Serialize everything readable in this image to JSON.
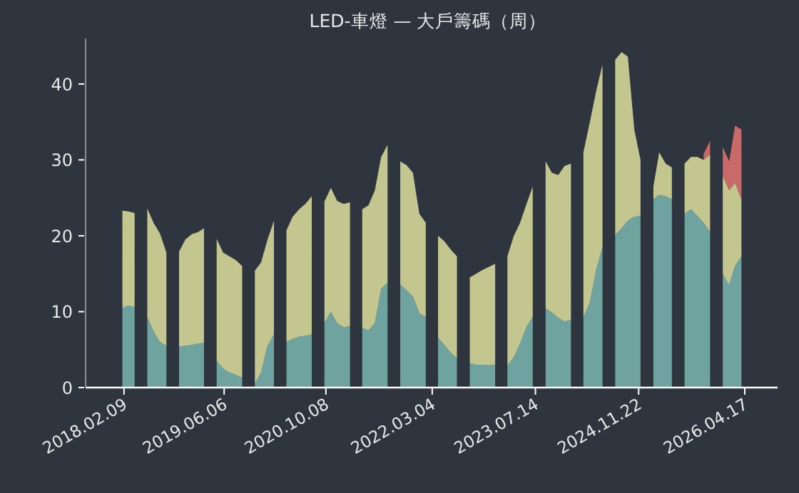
{
  "chart_data": {
    "type": "area",
    "title": "LED-車燈 — 大戶籌碼（周）",
    "stacked": true,
    "x": [
      "2018-02",
      "2018-03",
      "2018-04",
      "2018-05",
      "2018-06",
      "2018-07",
      "2018-08",
      "2018-09",
      "2018-10",
      "2018-11",
      "2018-12",
      "2019-01",
      "2019-02",
      "2019-03",
      "2019-04",
      "2019-05",
      "2019-06",
      "2019-07",
      "2019-08",
      "2019-09",
      "2019-10",
      "2019-11",
      "2019-12",
      "2020-01",
      "2020-02",
      "2020-03",
      "2020-04",
      "2020-05",
      "2020-06",
      "2020-07",
      "2020-08",
      "2020-09",
      "2020-10",
      "2020-11",
      "2020-12",
      "2021-01",
      "2021-02",
      "2021-03",
      "2021-04",
      "2021-05",
      "2021-06",
      "2021-07",
      "2021-08",
      "2021-09",
      "2021-10",
      "2021-11",
      "2021-12",
      "2022-01",
      "2022-02",
      "2022-03",
      "2022-04",
      "2022-05",
      "2022-06",
      "2022-07",
      "2022-08",
      "2022-09",
      "2022-10",
      "2022-11",
      "2022-12",
      "2023-01",
      "2023-02",
      "2023-03",
      "2023-04",
      "2023-05",
      "2023-06",
      "2023-07",
      "2023-08",
      "2023-09",
      "2023-10",
      "2023-11",
      "2023-12",
      "2024-01",
      "2024-02",
      "2024-03",
      "2024-04",
      "2024-05",
      "2024-06",
      "2024-07",
      "2024-08",
      "2024-09",
      "2024-10",
      "2024-11",
      "2024-12",
      "2025-01",
      "2025-02",
      "2025-03",
      "2025-04",
      "2025-05",
      "2025-06",
      "2025-07",
      "2025-08",
      "2025-09",
      "2025-10",
      "2025-11",
      "2025-12",
      "2026-01",
      "2026-02",
      "2026-03",
      "2026-04"
    ],
    "series": [
      {
        "color": "#6fa3a0",
        "values": [
          10.5,
          10.8,
          10.6,
          null,
          9.3,
          7.4,
          6.0,
          5.5,
          null,
          5.4,
          5.5,
          5.6,
          5.8,
          5.9,
          null,
          3.5,
          2.5,
          2.0,
          1.7,
          1.3,
          null,
          0.5,
          2.0,
          5.5,
          7.0,
          null,
          6.0,
          6.4,
          6.7,
          6.8,
          7.0,
          null,
          8.5,
          10.0,
          8.5,
          7.9,
          8.1,
          null,
          7.9,
          7.5,
          8.5,
          13.0,
          13.8,
          null,
          13.6,
          12.8,
          12.0,
          9.8,
          9.3,
          null,
          6.6,
          5.6,
          4.6,
          3.8,
          null,
          3.2,
          3.0,
          3.0,
          2.9,
          3.0,
          null,
          2.9,
          4.0,
          5.8,
          8.0,
          9.3,
          null,
          10.4,
          9.9,
          9.2,
          8.7,
          8.9,
          null,
          9.3,
          11.2,
          15.5,
          18.5,
          null,
          20.1,
          21.0,
          22.0,
          22.5,
          22.6,
          null,
          24.8,
          25.4,
          25.2,
          24.8,
          null,
          22.9,
          23.5,
          22.6,
          21.7,
          20.5,
          null,
          15.0,
          13.5,
          16.0,
          17.3
        ]
      },
      {
        "color": "#c3c68f",
        "values": [
          12.8,
          12.4,
          12.4,
          null,
          14.3,
          14.3,
          14.3,
          12.3,
          null,
          12.5,
          14.0,
          14.6,
          14.7,
          15.1,
          null,
          16.1,
          15.3,
          15.3,
          15.1,
          14.7,
          null,
          14.9,
          14.5,
          14.0,
          15.0,
          null,
          14.7,
          16.1,
          16.8,
          17.4,
          18.2,
          null,
          16.0,
          16.3,
          16.1,
          16.3,
          16.3,
          null,
          15.6,
          16.5,
          17.5,
          17.4,
          18.2,
          null,
          16.2,
          16.5,
          16.3,
          13.1,
          12.4,
          null,
          13.4,
          13.7,
          13.6,
          13.5,
          null,
          11.3,
          12.0,
          12.5,
          13.0,
          13.3,
          null,
          14.4,
          16.0,
          15.9,
          16.2,
          17.2,
          null,
          19.4,
          18.4,
          18.8,
          20.5,
          20.6,
          null,
          21.7,
          23.8,
          23.5,
          24.1,
          null,
          23.1,
          23.2,
          21.6,
          11.5,
          7.4,
          null,
          1.7,
          5.6,
          4.3,
          4.2,
          null,
          6.6,
          6.9,
          7.8,
          8.3,
          10.2,
          null,
          12.9,
          12.5,
          11.0,
          7.5
        ]
      },
      {
        "color": "#c96a6a",
        "values": [
          null,
          null,
          null,
          null,
          null,
          null,
          null,
          null,
          null,
          null,
          null,
          null,
          null,
          null,
          null,
          null,
          null,
          null,
          null,
          null,
          null,
          null,
          null,
          null,
          null,
          null,
          null,
          null,
          null,
          null,
          null,
          null,
          null,
          null,
          null,
          null,
          null,
          null,
          null,
          null,
          null,
          null,
          null,
          null,
          null,
          null,
          null,
          null,
          null,
          null,
          null,
          null,
          null,
          null,
          null,
          null,
          null,
          null,
          null,
          null,
          null,
          null,
          null,
          null,
          null,
          null,
          null,
          null,
          null,
          null,
          null,
          null,
          null,
          null,
          null,
          null,
          null,
          null,
          null,
          null,
          null,
          null,
          null,
          null,
          null,
          null,
          null,
          null,
          null,
          null,
          null,
          null,
          0.8,
          1.8,
          null,
          3.8,
          3.8,
          7.5,
          9.2
        ]
      }
    ],
    "xlim": [
      "2017-08-08",
      "2026-09-22"
    ],
    "xticks": [
      {
        "value": "2018-02-09",
        "label": "2018.02.09"
      },
      {
        "value": "2019-06-06",
        "label": "2019.06.06"
      },
      {
        "value": "2020-10-08",
        "label": "2020.10.08"
      },
      {
        "value": "2022-03-04",
        "label": "2022.03.04"
      },
      {
        "value": "2023-07-14",
        "label": "2023.07.14"
      },
      {
        "value": "2024-11-22",
        "label": "2024.11.22"
      },
      {
        "value": "2026-04-17",
        "label": "2026.04.17"
      }
    ],
    "ylim": [
      0,
      46
    ],
    "yticks": [
      0,
      10,
      20,
      30,
      40
    ]
  }
}
